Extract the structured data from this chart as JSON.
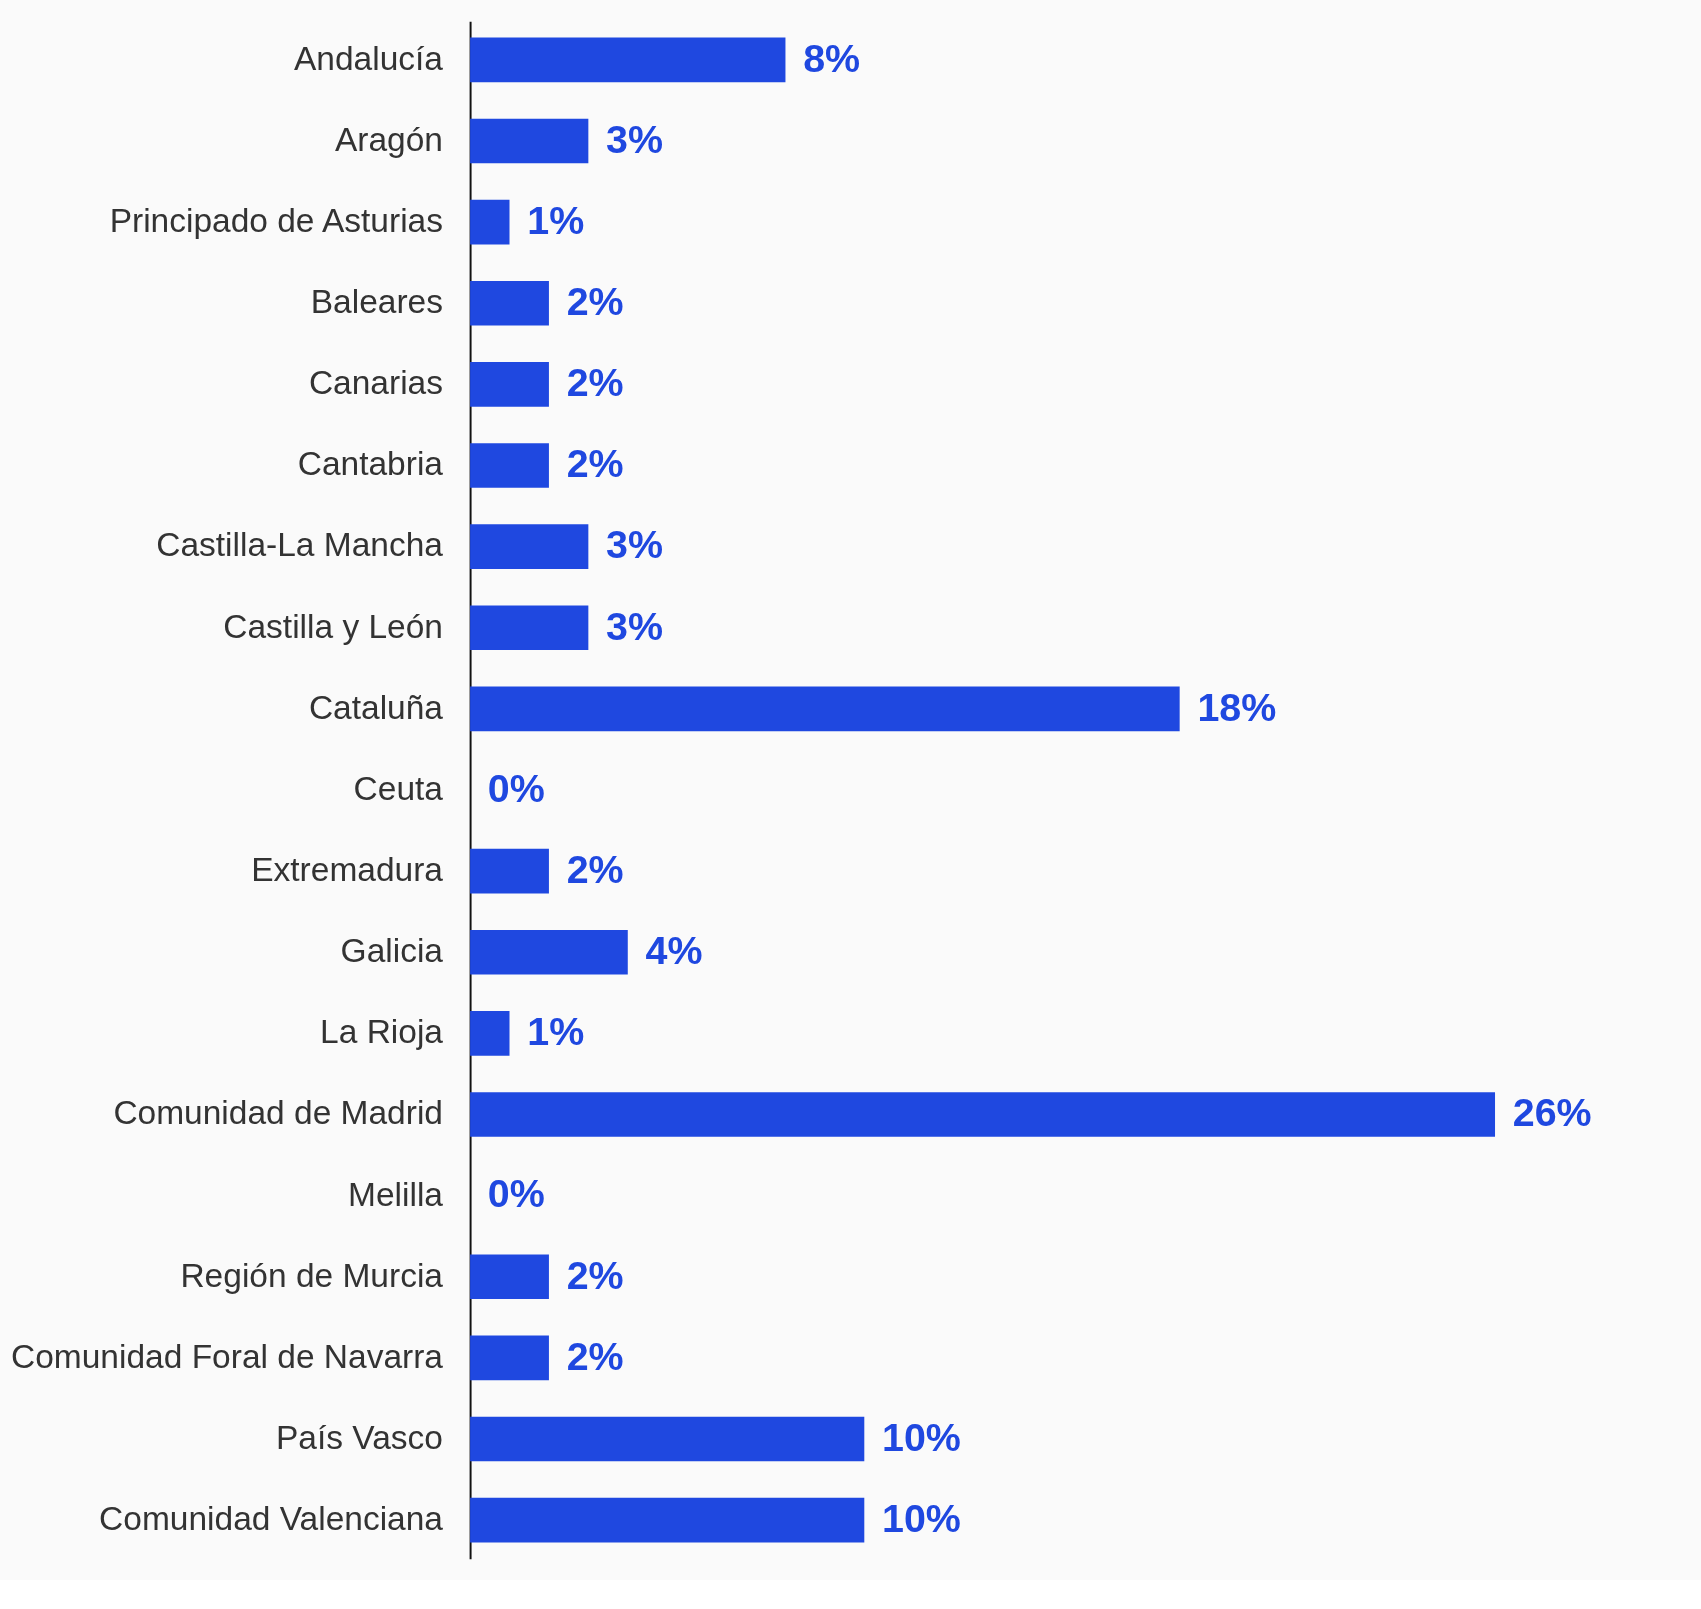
{
  "chart_data": {
    "type": "bar",
    "orientation": "horizontal",
    "categories": [
      "Andalucía",
      "Aragón",
      "Principado de Asturias",
      "Baleares",
      "Canarias",
      "Cantabria",
      "Castilla-La Mancha",
      "Castilla y León",
      "Cataluña",
      "Ceuta",
      "Extremadura",
      "Galicia",
      "La Rioja",
      "Comunidad de Madrid",
      "Melilla",
      "Región de Murcia",
      "Comunidad Foral de Navarra",
      "País Vasco",
      "Comunidad Valenciana"
    ],
    "values": [
      8,
      3,
      1,
      2,
      2,
      2,
      3,
      3,
      18,
      0,
      2,
      4,
      1,
      26,
      0,
      2,
      2,
      10,
      10
    ],
    "value_labels": [
      "8%",
      "3%",
      "1%",
      "2%",
      "2%",
      "2%",
      "3%",
      "3%",
      "18%",
      "0%",
      "2%",
      "4%",
      "1%",
      "26%",
      "0%",
      "2%",
      "2%",
      "10%",
      "10%"
    ],
    "color": "#1f48e0"
  }
}
